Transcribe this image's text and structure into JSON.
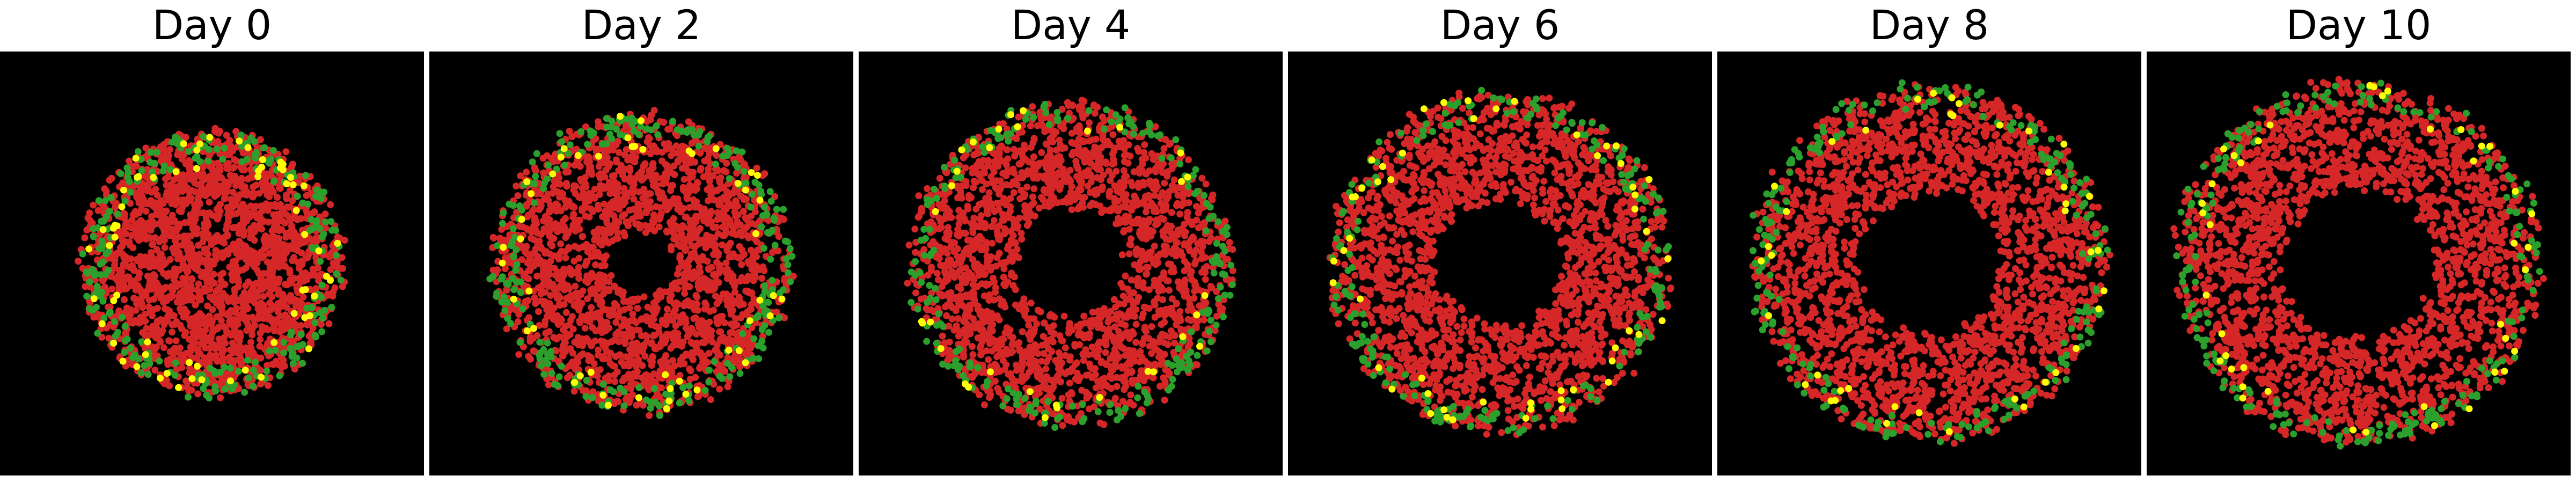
{
  "panels": [
    {
      "title": "Day 0",
      "ring_outer_frac": 0.62,
      "ring_inner_frac": 0.0,
      "green_frac": 0.06,
      "yellow_frac": 0.015
    },
    {
      "title": "Day 2",
      "ring_outer_frac": 0.7,
      "ring_inner_frac": 0.16,
      "green_frac": 0.08,
      "yellow_frac": 0.015
    },
    {
      "title": "Day 4",
      "ring_outer_frac": 0.76,
      "ring_inner_frac": 0.26,
      "green_frac": 0.08,
      "yellow_frac": 0.015
    },
    {
      "title": "Day 6",
      "ring_outer_frac": 0.8,
      "ring_inner_frac": 0.3,
      "green_frac": 0.08,
      "yellow_frac": 0.015
    },
    {
      "title": "Day 8",
      "ring_outer_frac": 0.84,
      "ring_inner_frac": 0.34,
      "green_frac": 0.08,
      "yellow_frac": 0.015
    },
    {
      "title": "Day 10",
      "ring_outer_frac": 0.86,
      "ring_inner_frac": 0.36,
      "green_frac": 0.08,
      "yellow_frac": 0.015
    }
  ],
  "colors": {
    "background": "#000000",
    "cell_red": "#d62728",
    "cell_green": "#2ca02c",
    "cell_yellow": "#ffff00"
  }
}
